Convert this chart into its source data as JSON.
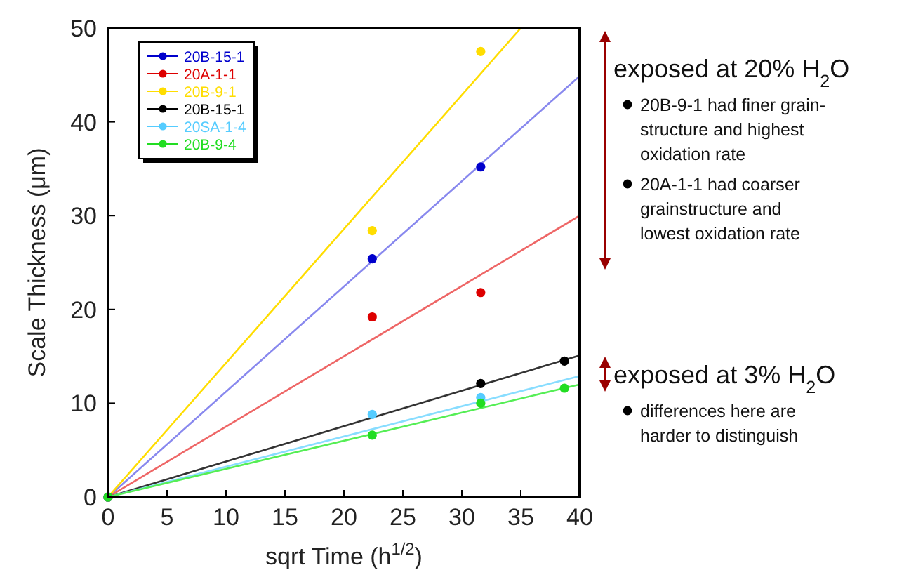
{
  "chart_data": {
    "type": "scatter",
    "xlabel": "sqrt Time (h$^{1/2}$)",
    "ylabel": "Scale Thickness (μm)",
    "xlim": [
      0,
      40
    ],
    "xticks": [
      0,
      5,
      10,
      15,
      20,
      25,
      30,
      35,
      40
    ],
    "ylim": [
      0,
      50
    ],
    "yticks": [
      0,
      10,
      20,
      30,
      40,
      50
    ],
    "grid": false,
    "legend": "top left",
    "marker": "circle",
    "series": [
      {
        "name": "20B-15-1",
        "color": "#0000cc",
        "x": [
          0,
          22.4,
          31.6
        ],
        "values": [
          0,
          25.4,
          35.2
        ]
      },
      {
        "name": "20A-1-1",
        "color": "#dd0000",
        "x": [
          0,
          22.4,
          31.6
        ],
        "values": [
          0,
          19.2,
          21.8
        ]
      },
      {
        "name": "20B-9-1",
        "color": "#ffdd00",
        "x": [
          0,
          22.4,
          31.6
        ],
        "values": [
          0,
          28.4,
          47.5
        ]
      },
      {
        "name": "20B-15-1",
        "color": "#000000",
        "x": [
          0,
          31.6,
          38.7
        ],
        "values": [
          0,
          12.1,
          14.5
        ]
      },
      {
        "name": "20SA-1-4",
        "color": "#55ccff",
        "x": [
          0,
          22.4,
          31.6
        ],
        "values": [
          0,
          8.8,
          10.6
        ]
      },
      {
        "name": "20B-9-4",
        "color": "#22dd22",
        "x": [
          0,
          22.4,
          31.6,
          38.7
        ],
        "values": [
          0,
          6.6,
          10.0,
          11.6
        ]
      },
      {
        "type": "line",
        "marker": "none",
        "color": "#8888ee",
        "x": [
          0,
          40
        ],
        "values": [
          0,
          44.9
        ]
      },
      {
        "type": "line",
        "marker": "none",
        "color": "#ee6666",
        "x": [
          0,
          40
        ],
        "values": [
          0,
          30.0
        ]
      },
      {
        "type": "line",
        "marker": "none",
        "color": "#ffdd00",
        "x": [
          0,
          35
        ],
        "values": [
          0,
          50
        ]
      },
      {
        "type": "line",
        "marker": "none",
        "color": "#333333",
        "x": [
          0,
          40
        ],
        "values": [
          0,
          15.1
        ]
      },
      {
        "type": "line",
        "marker": "none",
        "color": "#88ddff",
        "x": [
          0,
          40
        ],
        "values": [
          0,
          12.9
        ]
      },
      {
        "type": "line",
        "marker": "none",
        "color": "#55ee55",
        "x": [
          0,
          40
        ],
        "values": [
          0,
          12.0
        ]
      }
    ],
    "annotations": [
      "exposed at 20% H$_{2}$O",
      "20B-9-1 had finer grain-structure and highest oxidation rate",
      "20A-1-1 had coarser grainstructure and lowest oxidation rate",
      "exposed at 3% H$_{2}$O",
      "differences here are harder to distinguish"
    ]
  }
}
